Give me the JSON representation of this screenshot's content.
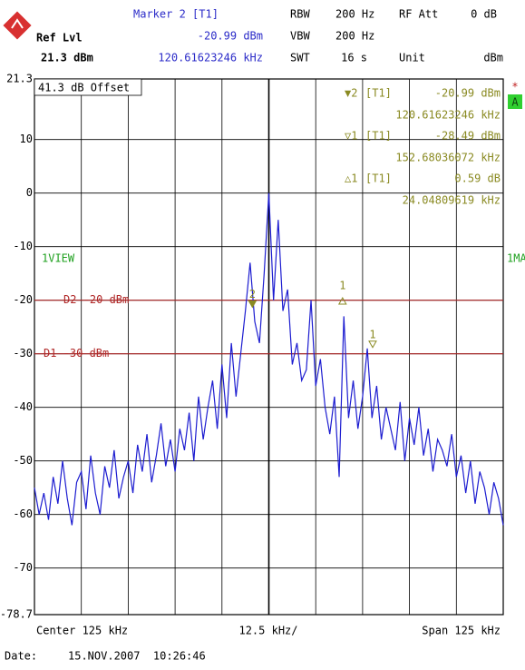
{
  "header": {
    "marker_title": "Marker 2 [T1]",
    "marker_level": "-20.99 dBm",
    "marker_freq": "120.61623246 kHz",
    "ref_lvl_label": "Ref Lvl",
    "ref_lvl": "21.3 dBm",
    "rbw_label": "RBW",
    "rbw": "200 Hz",
    "vbw_label": "VBW",
    "vbw": "200 Hz",
    "swt_label": "SWT",
    "swt": "16 s",
    "rf_att_label": "RF Att",
    "rf_att": "0 dB",
    "unit_label": "Unit",
    "unit": "dBm"
  },
  "chart_data": {
    "type": "line",
    "color": "#1c1cd0",
    "xlim": [
      62.5,
      187.5
    ],
    "ylim": [
      -78.7,
      21.3
    ],
    "yticks": [
      21.3,
      10,
      0,
      -10,
      -20,
      -30,
      -40,
      -50,
      -60,
      -70,
      -78.7
    ],
    "grid": true,
    "offset_label": "41.3 dB Offset",
    "trace_label": "1VIEW",
    "mode_label": "1MA",
    "status_star": "*",
    "status_box": "A",
    "x_center_label": "Center 125 kHz",
    "x_div_label": "12.5 kHz/",
    "x_span_label": "Span 125 kHz",
    "ref_lines": [
      {
        "label": "D2 -20 dBm",
        "value": -20,
        "color": "#b02828"
      },
      {
        "label": "D1 -30 dBm",
        "value": -30,
        "color": "#b02828"
      }
    ],
    "markers": [
      {
        "label": "2",
        "x": 120.61623246,
        "y": -20.99,
        "filled": true
      },
      {
        "label": "1",
        "x": 152.68036072,
        "y": -28.49,
        "filled": false
      },
      {
        "label": "1",
        "x": 144.66,
        "y": -20.4,
        "filled": false,
        "delta": true
      }
    ],
    "marker_table": [
      {
        "symbol": "▼2",
        "detector": "[T1]",
        "level": "-20.99 dBm",
        "freq": "120.61623246 kHz"
      },
      {
        "symbol": "▽1",
        "detector": "[T1]",
        "level": "-28.49 dBm",
        "freq": "152.68036072 kHz"
      },
      {
        "symbol": "△1",
        "detector": "[T1]",
        "level": "0.59 dB",
        "freq": "24.04809619 kHz"
      }
    ],
    "x": [
      62.5,
      63.75,
      65,
      66.25,
      67.5,
      68.75,
      70,
      71.25,
      72.5,
      73.75,
      75,
      76.25,
      77.5,
      78.75,
      80,
      81.25,
      82.5,
      83.75,
      85,
      86.25,
      87.5,
      88.75,
      90,
      91.25,
      92.5,
      93.75,
      95,
      96.25,
      97.5,
      98.75,
      100,
      101.25,
      102.5,
      103.75,
      105,
      106.25,
      107.5,
      108.75,
      110,
      111.25,
      112.5,
      113.75,
      115,
      116.25,
      117.5,
      118.75,
      120,
      121.25,
      122.5,
      123.75,
      125,
      126.25,
      127.5,
      128.75,
      130,
      131.25,
      132.5,
      133.75,
      135,
      136.25,
      137.5,
      138.75,
      140,
      141.25,
      142.5,
      143.75,
      145,
      146.25,
      147.5,
      148.75,
      150,
      151.25,
      152.5,
      153.75,
      155,
      156.25,
      157.5,
      158.75,
      160,
      161.25,
      162.5,
      163.75,
      165,
      166.25,
      167.5,
      168.75,
      170,
      171.25,
      172.5,
      173.75,
      175,
      176.25,
      177.5,
      178.75,
      180,
      181.25,
      182.5,
      183.75,
      185,
      186.25,
      187.5
    ],
    "values": [
      -55,
      -60,
      -56,
      -61,
      -53,
      -58,
      -50,
      -57,
      -62,
      -54,
      -52,
      -59,
      -49,
      -56,
      -60,
      -51,
      -55,
      -48,
      -57,
      -53,
      -50,
      -56,
      -47,
      -52,
      -45,
      -54,
      -49,
      -43,
      -51,
      -46,
      -52,
      -44,
      -48,
      -41,
      -50,
      -38,
      -46,
      -40,
      -35,
      -44,
      -32,
      -42,
      -28,
      -38,
      -30,
      -22,
      -13,
      -24,
      -28,
      -15,
      0,
      -20,
      -5,
      -22,
      -18,
      -32,
      -28,
      -35,
      -33,
      -20,
      -36,
      -31,
      -40,
      -45,
      -38,
      -53,
      -23,
      -42,
      -35,
      -44,
      -38,
      -29,
      -42,
      -36,
      -46,
      -40,
      -44,
      -48,
      -39,
      -50,
      -42,
      -47,
      -40,
      -49,
      -44,
      -52,
      -46,
      -48,
      -51,
      -45,
      -53,
      -49,
      -56,
      -50,
      -58,
      -52,
      -55,
      -60,
      -54,
      -57,
      -62
    ]
  },
  "footer": {
    "date_label": "Date:",
    "date": "15.NOV.2007  10:26:46"
  }
}
